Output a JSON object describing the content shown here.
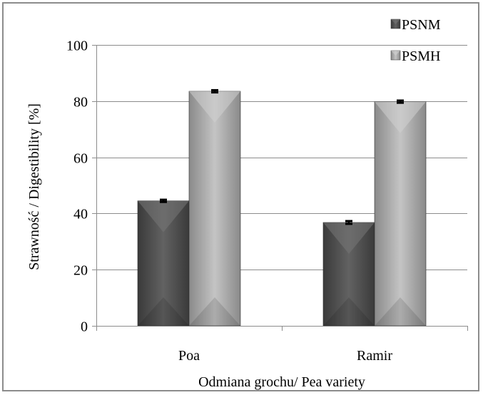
{
  "chart_data": {
    "type": "bar",
    "categories": [
      "Poa",
      "Ramir"
    ],
    "series": [
      {
        "name": "PSNM",
        "values": [
          44.5,
          36.8
        ],
        "error": [
          0.4,
          0.5
        ],
        "color": "#555555"
      },
      {
        "name": "PSMH",
        "values": [
          83.5,
          79.8
        ],
        "error": [
          0.4,
          0.4
        ],
        "color": "#a6a6a6"
      }
    ],
    "title": "",
    "xlabel": "Odmiana grochu/ Pea variety",
    "ylabel": "Strawność / Digestibility [%]",
    "ylim": [
      0,
      100
    ],
    "yticks": [
      0,
      20,
      40,
      60,
      80,
      100
    ],
    "grid": true,
    "legend": "top-right"
  }
}
